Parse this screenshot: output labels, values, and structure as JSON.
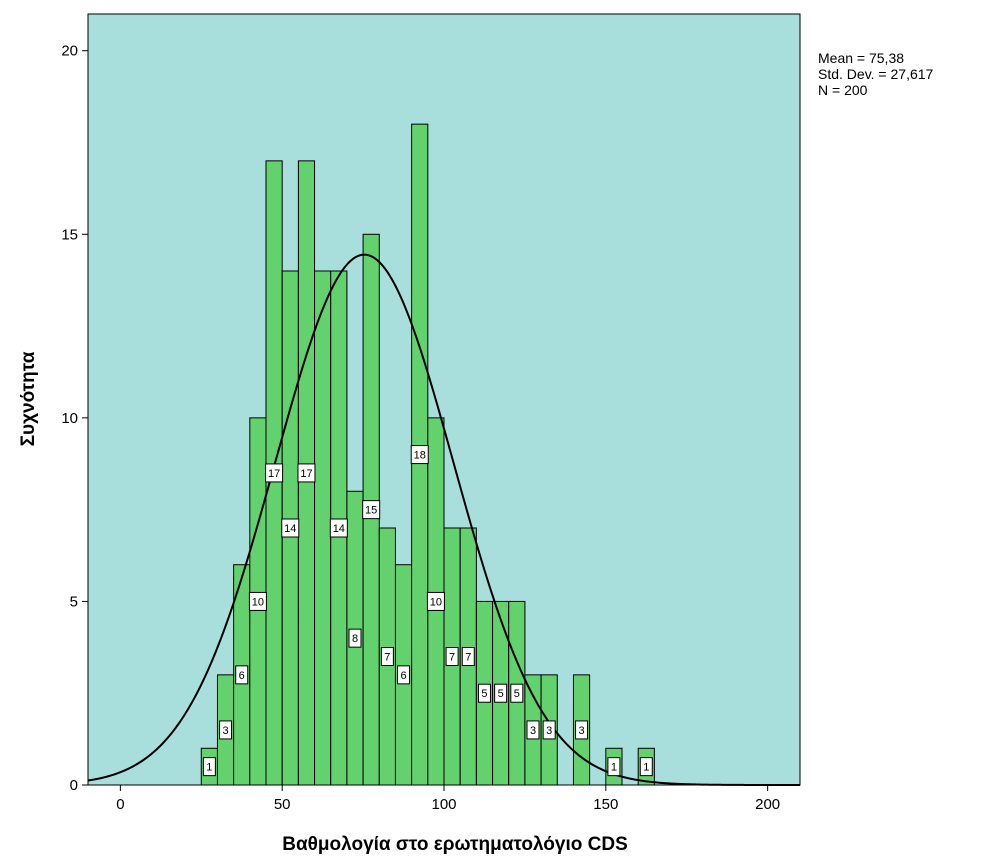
{
  "chart_data": {
    "type": "bar",
    "subtype": "histogram",
    "xlabel": "Βαθμολογία στο ερωτηματολόγιο CDS",
    "ylabel": "Συχνότητα",
    "xlim": [
      -10,
      210
    ],
    "ylim": [
      0,
      21
    ],
    "x_ticks": [
      0,
      50,
      100,
      150,
      200
    ],
    "y_ticks": [
      0,
      5,
      10,
      15,
      20
    ],
    "bin_width": 5,
    "bins": [
      {
        "x": 25,
        "count": 1,
        "label": "1"
      },
      {
        "x": 30,
        "count": 3,
        "label": "3"
      },
      {
        "x": 35,
        "count": 6,
        "label": "6"
      },
      {
        "x": 40,
        "count": 10,
        "label": "10"
      },
      {
        "x": 45,
        "count": 17,
        "label": "17"
      },
      {
        "x": 50,
        "count": 14,
        "label": "14"
      },
      {
        "x": 55,
        "count": 17,
        "label": "17"
      },
      {
        "x": 60,
        "count": 14,
        "label": ""
      },
      {
        "x": 65,
        "count": 14,
        "label": "14"
      },
      {
        "x": 70,
        "count": 8,
        "label": "8"
      },
      {
        "x": 75,
        "count": 15,
        "label": "15"
      },
      {
        "x": 80,
        "count": 7,
        "label": "7"
      },
      {
        "x": 85,
        "count": 6,
        "label": "6"
      },
      {
        "x": 90,
        "count": 18,
        "label": "18"
      },
      {
        "x": 95,
        "count": 10,
        "label": "10"
      },
      {
        "x": 100,
        "count": 7,
        "label": "7"
      },
      {
        "x": 105,
        "count": 7,
        "label": "7"
      },
      {
        "x": 110,
        "count": 5,
        "label": "5"
      },
      {
        "x": 115,
        "count": 5,
        "label": "5"
      },
      {
        "x": 120,
        "count": 5,
        "label": "5"
      },
      {
        "x": 125,
        "count": 3,
        "label": "3"
      },
      {
        "x": 130,
        "count": 3,
        "label": "3"
      },
      {
        "x": 140,
        "count": 3,
        "label": "3"
      },
      {
        "x": 150,
        "count": 1,
        "label": "1"
      },
      {
        "x": 160,
        "count": 1,
        "label": "1"
      }
    ],
    "normal_curve": {
      "mean": 75.38,
      "std_dev": 27.617,
      "n": 200
    },
    "stats_text": [
      "Mean = 75,38",
      "Std. Dev. = 27,617",
      "N = 200"
    ],
    "grid": false,
    "colors": {
      "plot_background": "#a8dedc",
      "bar_fill": "#63d26e",
      "bar_stroke": "#000000",
      "curve": "#000000"
    }
  }
}
